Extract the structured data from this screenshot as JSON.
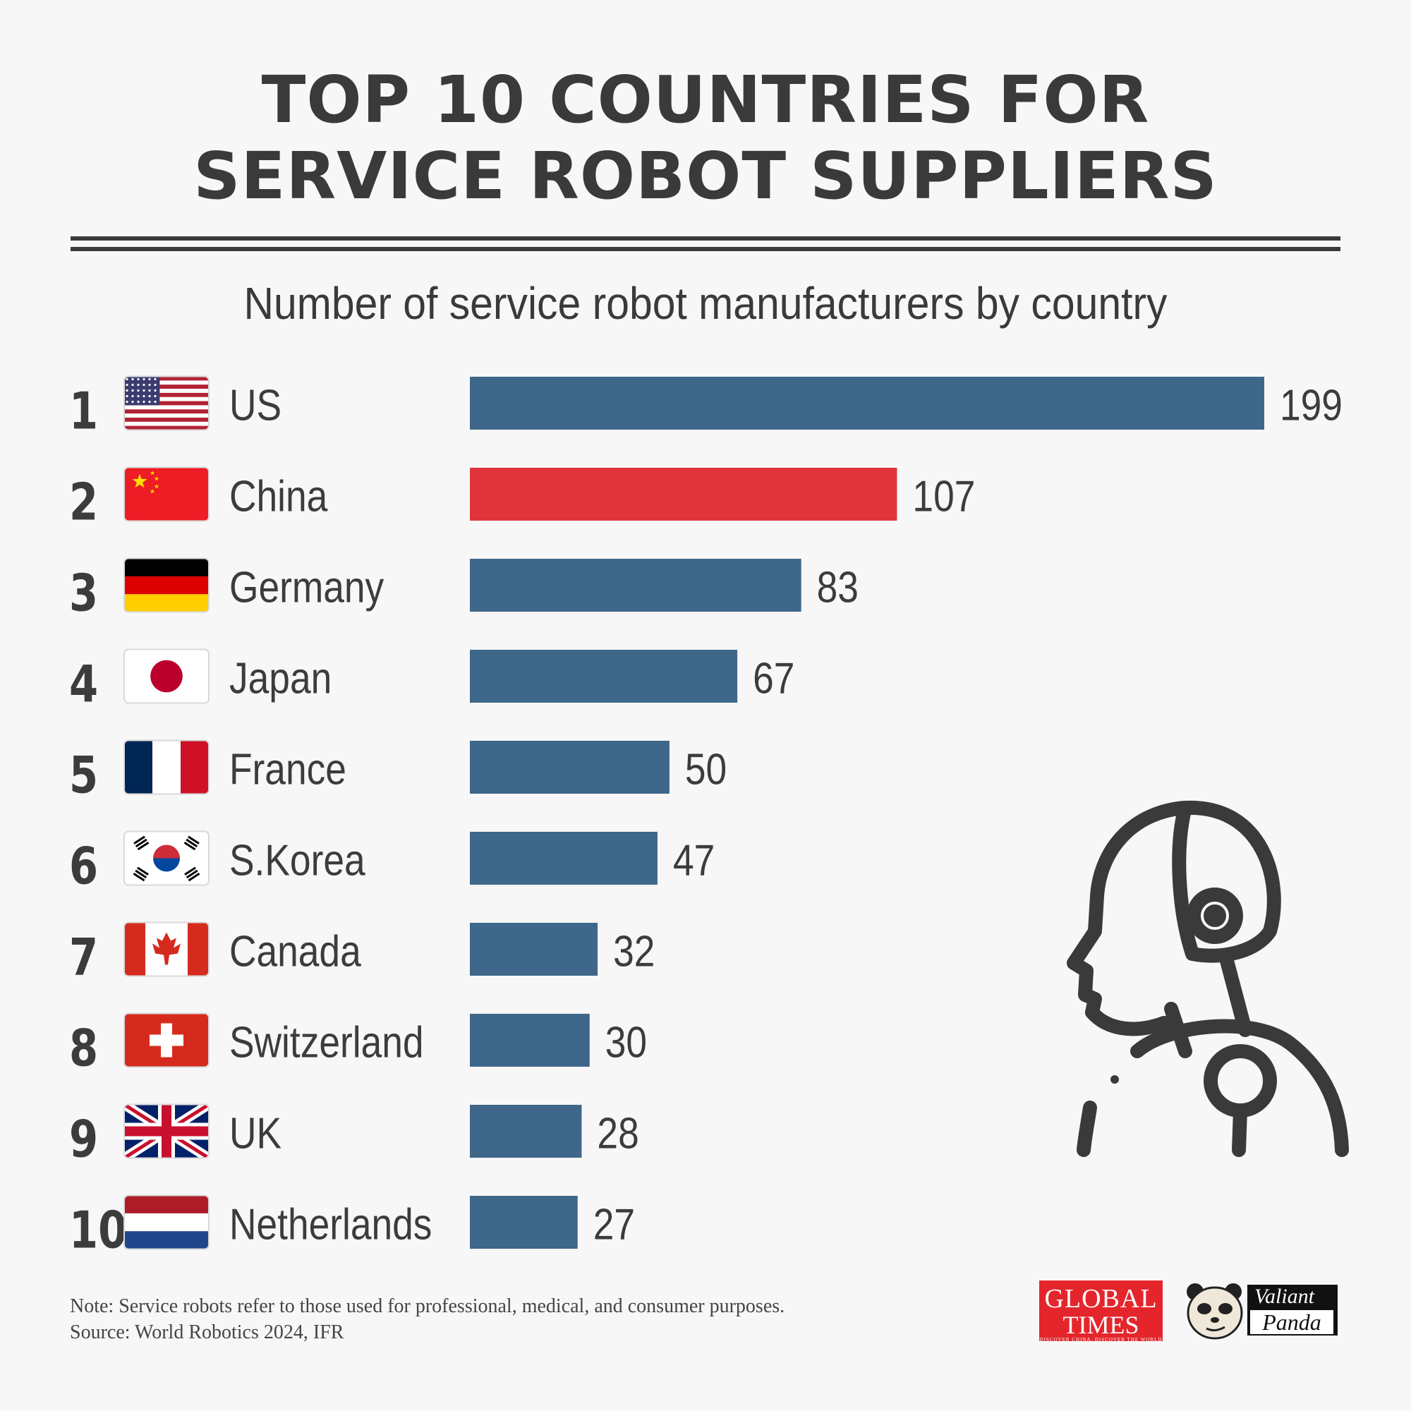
{
  "title_line1": "TOP 10 COUNTRIES FOR",
  "title_line2": "SERVICE ROBOT SUPPLIERS",
  "subtitle": "Number of service robot manufacturers by country",
  "colors": {
    "bar": "#3e6789",
    "highlight": "#e1343a",
    "text": "#3c3c3c",
    "background": "#f7f7f7"
  },
  "chart_data": {
    "type": "bar",
    "orientation": "horizontal",
    "title": "TOP 10 COUNTRIES FOR SERVICE ROBOT SUPPLIERS",
    "subtitle": "Number of service robot manufacturers by country",
    "ranks": [
      "1",
      "2",
      "3",
      "4",
      "5",
      "6",
      "7",
      "8",
      "9",
      "10"
    ],
    "categories": [
      "US",
      "China",
      "Germany",
      "Japan",
      "France",
      "S.Korea",
      "Canada",
      "Switzerland",
      "UK",
      "Netherlands"
    ],
    "values": [
      199,
      107,
      83,
      67,
      50,
      47,
      32,
      30,
      28,
      27
    ],
    "flags": [
      "us-flag",
      "china-flag",
      "germany-flag",
      "japan-flag",
      "france-flag",
      "south-korea-flag",
      "canada-flag",
      "switzerland-flag",
      "uk-flag",
      "netherlands-flag"
    ],
    "highlight_category": "China",
    "xlim": [
      0,
      199
    ],
    "xlabel": "",
    "ylabel": ""
  },
  "footer": {
    "note": "Note: Service robots refer to those used for professional, medical, and consumer purposes.",
    "source": "Source: World Robotics 2024, IFR"
  },
  "logos": {
    "global_times_line1": "GLOBAL",
    "global_times_line2": "TIMES",
    "global_times_tagline": "DISCOVER CHINA, DISCOVER THE WORLD",
    "valiant_panda_line1": "Valiant",
    "valiant_panda_line2": "Panda"
  },
  "icons": {
    "illustration": "robot-head-icon"
  }
}
